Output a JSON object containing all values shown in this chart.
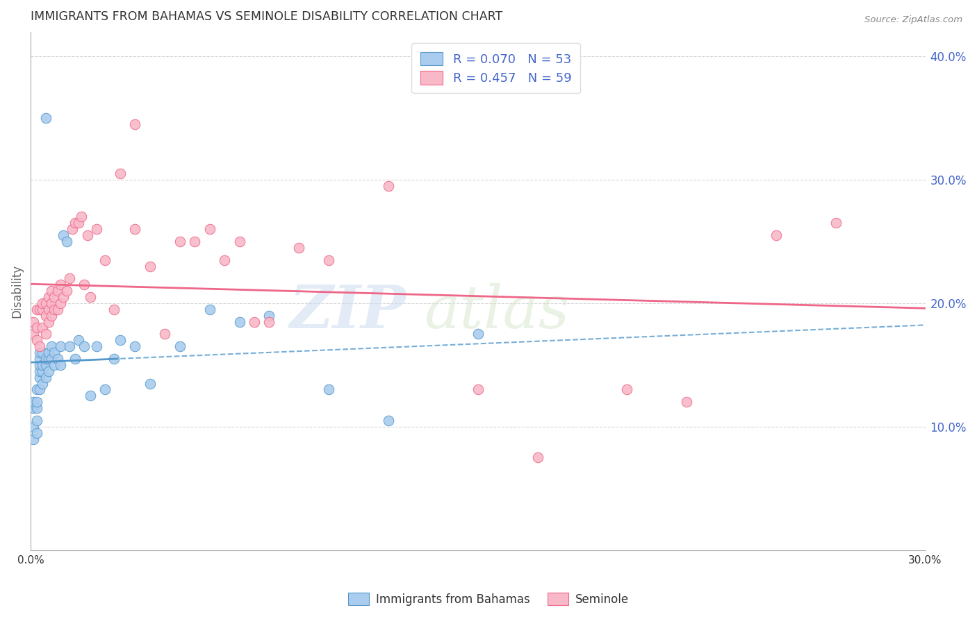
{
  "title": "IMMIGRANTS FROM BAHAMAS VS SEMINOLE DISABILITY CORRELATION CHART",
  "source": "Source: ZipAtlas.com",
  "ylabel": "Disability",
  "xlim": [
    0.0,
    0.3
  ],
  "ylim": [
    0.0,
    0.42
  ],
  "right_yticks": [
    0.1,
    0.2,
    0.3,
    0.4
  ],
  "right_ytick_labels": [
    "10.0%",
    "20.0%",
    "30.0%",
    "40.0%"
  ],
  "xticks": [
    0.0,
    0.05,
    0.1,
    0.15,
    0.2,
    0.25,
    0.3
  ],
  "xtick_labels": [
    "0.0%",
    "",
    "",
    "",
    "",
    "",
    "30.0%"
  ],
  "legend_label_blue": "Immigrants from Bahamas",
  "legend_label_pink": "Seminole",
  "blue_color": "#aaccee",
  "pink_color": "#f8b8c8",
  "trend_blue_color": "#5599cc",
  "trend_pink_color": "#ee6688",
  "blue_scatter": {
    "x": [
      0.001,
      0.001,
      0.001,
      0.001,
      0.002,
      0.002,
      0.002,
      0.002,
      0.002,
      0.003,
      0.003,
      0.003,
      0.003,
      0.003,
      0.003,
      0.004,
      0.004,
      0.004,
      0.004,
      0.005,
      0.005,
      0.005,
      0.006,
      0.006,
      0.006,
      0.007,
      0.007,
      0.008,
      0.008,
      0.009,
      0.01,
      0.01,
      0.011,
      0.012,
      0.013,
      0.015,
      0.016,
      0.018,
      0.02,
      0.022,
      0.025,
      0.028,
      0.03,
      0.035,
      0.04,
      0.05,
      0.06,
      0.07,
      0.08,
      0.1,
      0.12,
      0.15,
      0.005
    ],
    "y": [
      0.09,
      0.1,
      0.115,
      0.12,
      0.095,
      0.105,
      0.115,
      0.12,
      0.13,
      0.13,
      0.14,
      0.145,
      0.15,
      0.155,
      0.16,
      0.135,
      0.145,
      0.15,
      0.16,
      0.14,
      0.15,
      0.155,
      0.145,
      0.155,
      0.16,
      0.155,
      0.165,
      0.15,
      0.16,
      0.155,
      0.15,
      0.165,
      0.255,
      0.25,
      0.165,
      0.155,
      0.17,
      0.165,
      0.125,
      0.165,
      0.13,
      0.155,
      0.17,
      0.165,
      0.135,
      0.165,
      0.195,
      0.185,
      0.19,
      0.13,
      0.105,
      0.175,
      0.35
    ]
  },
  "pink_scatter": {
    "x": [
      0.001,
      0.001,
      0.002,
      0.002,
      0.002,
      0.003,
      0.003,
      0.004,
      0.004,
      0.004,
      0.005,
      0.005,
      0.005,
      0.006,
      0.006,
      0.006,
      0.007,
      0.007,
      0.007,
      0.008,
      0.008,
      0.009,
      0.009,
      0.01,
      0.01,
      0.011,
      0.012,
      0.013,
      0.014,
      0.015,
      0.016,
      0.017,
      0.018,
      0.019,
      0.02,
      0.022,
      0.025,
      0.028,
      0.03,
      0.035,
      0.04,
      0.045,
      0.05,
      0.055,
      0.06,
      0.065,
      0.07,
      0.08,
      0.09,
      0.1,
      0.12,
      0.15,
      0.17,
      0.2,
      0.22,
      0.25,
      0.27,
      0.075,
      0.035
    ],
    "y": [
      0.175,
      0.185,
      0.17,
      0.18,
      0.195,
      0.165,
      0.195,
      0.18,
      0.195,
      0.2,
      0.175,
      0.19,
      0.2,
      0.185,
      0.195,
      0.205,
      0.19,
      0.2,
      0.21,
      0.195,
      0.205,
      0.195,
      0.21,
      0.2,
      0.215,
      0.205,
      0.21,
      0.22,
      0.26,
      0.265,
      0.265,
      0.27,
      0.215,
      0.255,
      0.205,
      0.26,
      0.235,
      0.195,
      0.305,
      0.26,
      0.23,
      0.175,
      0.25,
      0.25,
      0.26,
      0.235,
      0.25,
      0.185,
      0.245,
      0.235,
      0.295,
      0.13,
      0.075,
      0.13,
      0.12,
      0.255,
      0.265,
      0.185,
      0.345
    ]
  },
  "watermark_zip": "ZIP",
  "watermark_atlas": "atlas",
  "background_color": "#ffffff",
  "grid_color": "#cccccc",
  "title_color": "#333333",
  "axis_label_color": "#666666",
  "right_axis_color": "#4466cc",
  "tick_label_color": "#333333"
}
